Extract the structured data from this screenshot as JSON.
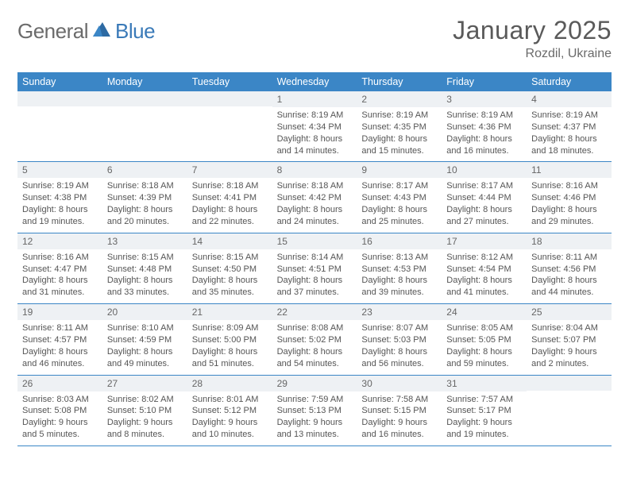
{
  "brand": {
    "general": "General",
    "blue": "Blue"
  },
  "title": "January 2025",
  "location": "Rozdil, Ukraine",
  "colors": {
    "accent": "#3b86c6",
    "daynum_bg": "#eef1f4",
    "text": "#555555",
    "title_text": "#5a5a5a"
  },
  "day_headers": [
    "Sunday",
    "Monday",
    "Tuesday",
    "Wednesday",
    "Thursday",
    "Friday",
    "Saturday"
  ],
  "weeks": [
    [
      {
        "n": "",
        "lines": []
      },
      {
        "n": "",
        "lines": []
      },
      {
        "n": "",
        "lines": []
      },
      {
        "n": "1",
        "lines": [
          "Sunrise: 8:19 AM",
          "Sunset: 4:34 PM",
          "Daylight: 8 hours",
          "and 14 minutes."
        ]
      },
      {
        "n": "2",
        "lines": [
          "Sunrise: 8:19 AM",
          "Sunset: 4:35 PM",
          "Daylight: 8 hours",
          "and 15 minutes."
        ]
      },
      {
        "n": "3",
        "lines": [
          "Sunrise: 8:19 AM",
          "Sunset: 4:36 PM",
          "Daylight: 8 hours",
          "and 16 minutes."
        ]
      },
      {
        "n": "4",
        "lines": [
          "Sunrise: 8:19 AM",
          "Sunset: 4:37 PM",
          "Daylight: 8 hours",
          "and 18 minutes."
        ]
      }
    ],
    [
      {
        "n": "5",
        "lines": [
          "Sunrise: 8:19 AM",
          "Sunset: 4:38 PM",
          "Daylight: 8 hours",
          "and 19 minutes."
        ]
      },
      {
        "n": "6",
        "lines": [
          "Sunrise: 8:18 AM",
          "Sunset: 4:39 PM",
          "Daylight: 8 hours",
          "and 20 minutes."
        ]
      },
      {
        "n": "7",
        "lines": [
          "Sunrise: 8:18 AM",
          "Sunset: 4:41 PM",
          "Daylight: 8 hours",
          "and 22 minutes."
        ]
      },
      {
        "n": "8",
        "lines": [
          "Sunrise: 8:18 AM",
          "Sunset: 4:42 PM",
          "Daylight: 8 hours",
          "and 24 minutes."
        ]
      },
      {
        "n": "9",
        "lines": [
          "Sunrise: 8:17 AM",
          "Sunset: 4:43 PM",
          "Daylight: 8 hours",
          "and 25 minutes."
        ]
      },
      {
        "n": "10",
        "lines": [
          "Sunrise: 8:17 AM",
          "Sunset: 4:44 PM",
          "Daylight: 8 hours",
          "and 27 minutes."
        ]
      },
      {
        "n": "11",
        "lines": [
          "Sunrise: 8:16 AM",
          "Sunset: 4:46 PM",
          "Daylight: 8 hours",
          "and 29 minutes."
        ]
      }
    ],
    [
      {
        "n": "12",
        "lines": [
          "Sunrise: 8:16 AM",
          "Sunset: 4:47 PM",
          "Daylight: 8 hours",
          "and 31 minutes."
        ]
      },
      {
        "n": "13",
        "lines": [
          "Sunrise: 8:15 AM",
          "Sunset: 4:48 PM",
          "Daylight: 8 hours",
          "and 33 minutes."
        ]
      },
      {
        "n": "14",
        "lines": [
          "Sunrise: 8:15 AM",
          "Sunset: 4:50 PM",
          "Daylight: 8 hours",
          "and 35 minutes."
        ]
      },
      {
        "n": "15",
        "lines": [
          "Sunrise: 8:14 AM",
          "Sunset: 4:51 PM",
          "Daylight: 8 hours",
          "and 37 minutes."
        ]
      },
      {
        "n": "16",
        "lines": [
          "Sunrise: 8:13 AM",
          "Sunset: 4:53 PM",
          "Daylight: 8 hours",
          "and 39 minutes."
        ]
      },
      {
        "n": "17",
        "lines": [
          "Sunrise: 8:12 AM",
          "Sunset: 4:54 PM",
          "Daylight: 8 hours",
          "and 41 minutes."
        ]
      },
      {
        "n": "18",
        "lines": [
          "Sunrise: 8:11 AM",
          "Sunset: 4:56 PM",
          "Daylight: 8 hours",
          "and 44 minutes."
        ]
      }
    ],
    [
      {
        "n": "19",
        "lines": [
          "Sunrise: 8:11 AM",
          "Sunset: 4:57 PM",
          "Daylight: 8 hours",
          "and 46 minutes."
        ]
      },
      {
        "n": "20",
        "lines": [
          "Sunrise: 8:10 AM",
          "Sunset: 4:59 PM",
          "Daylight: 8 hours",
          "and 49 minutes."
        ]
      },
      {
        "n": "21",
        "lines": [
          "Sunrise: 8:09 AM",
          "Sunset: 5:00 PM",
          "Daylight: 8 hours",
          "and 51 minutes."
        ]
      },
      {
        "n": "22",
        "lines": [
          "Sunrise: 8:08 AM",
          "Sunset: 5:02 PM",
          "Daylight: 8 hours",
          "and 54 minutes."
        ]
      },
      {
        "n": "23",
        "lines": [
          "Sunrise: 8:07 AM",
          "Sunset: 5:03 PM",
          "Daylight: 8 hours",
          "and 56 minutes."
        ]
      },
      {
        "n": "24",
        "lines": [
          "Sunrise: 8:05 AM",
          "Sunset: 5:05 PM",
          "Daylight: 8 hours",
          "and 59 minutes."
        ]
      },
      {
        "n": "25",
        "lines": [
          "Sunrise: 8:04 AM",
          "Sunset: 5:07 PM",
          "Daylight: 9 hours",
          "and 2 minutes."
        ]
      }
    ],
    [
      {
        "n": "26",
        "lines": [
          "Sunrise: 8:03 AM",
          "Sunset: 5:08 PM",
          "Daylight: 9 hours",
          "and 5 minutes."
        ]
      },
      {
        "n": "27",
        "lines": [
          "Sunrise: 8:02 AM",
          "Sunset: 5:10 PM",
          "Daylight: 9 hours",
          "and 8 minutes."
        ]
      },
      {
        "n": "28",
        "lines": [
          "Sunrise: 8:01 AM",
          "Sunset: 5:12 PM",
          "Daylight: 9 hours",
          "and 10 minutes."
        ]
      },
      {
        "n": "29",
        "lines": [
          "Sunrise: 7:59 AM",
          "Sunset: 5:13 PM",
          "Daylight: 9 hours",
          "and 13 minutes."
        ]
      },
      {
        "n": "30",
        "lines": [
          "Sunrise: 7:58 AM",
          "Sunset: 5:15 PM",
          "Daylight: 9 hours",
          "and 16 minutes."
        ]
      },
      {
        "n": "31",
        "lines": [
          "Sunrise: 7:57 AM",
          "Sunset: 5:17 PM",
          "Daylight: 9 hours",
          "and 19 minutes."
        ]
      },
      {
        "n": "",
        "lines": []
      }
    ]
  ]
}
